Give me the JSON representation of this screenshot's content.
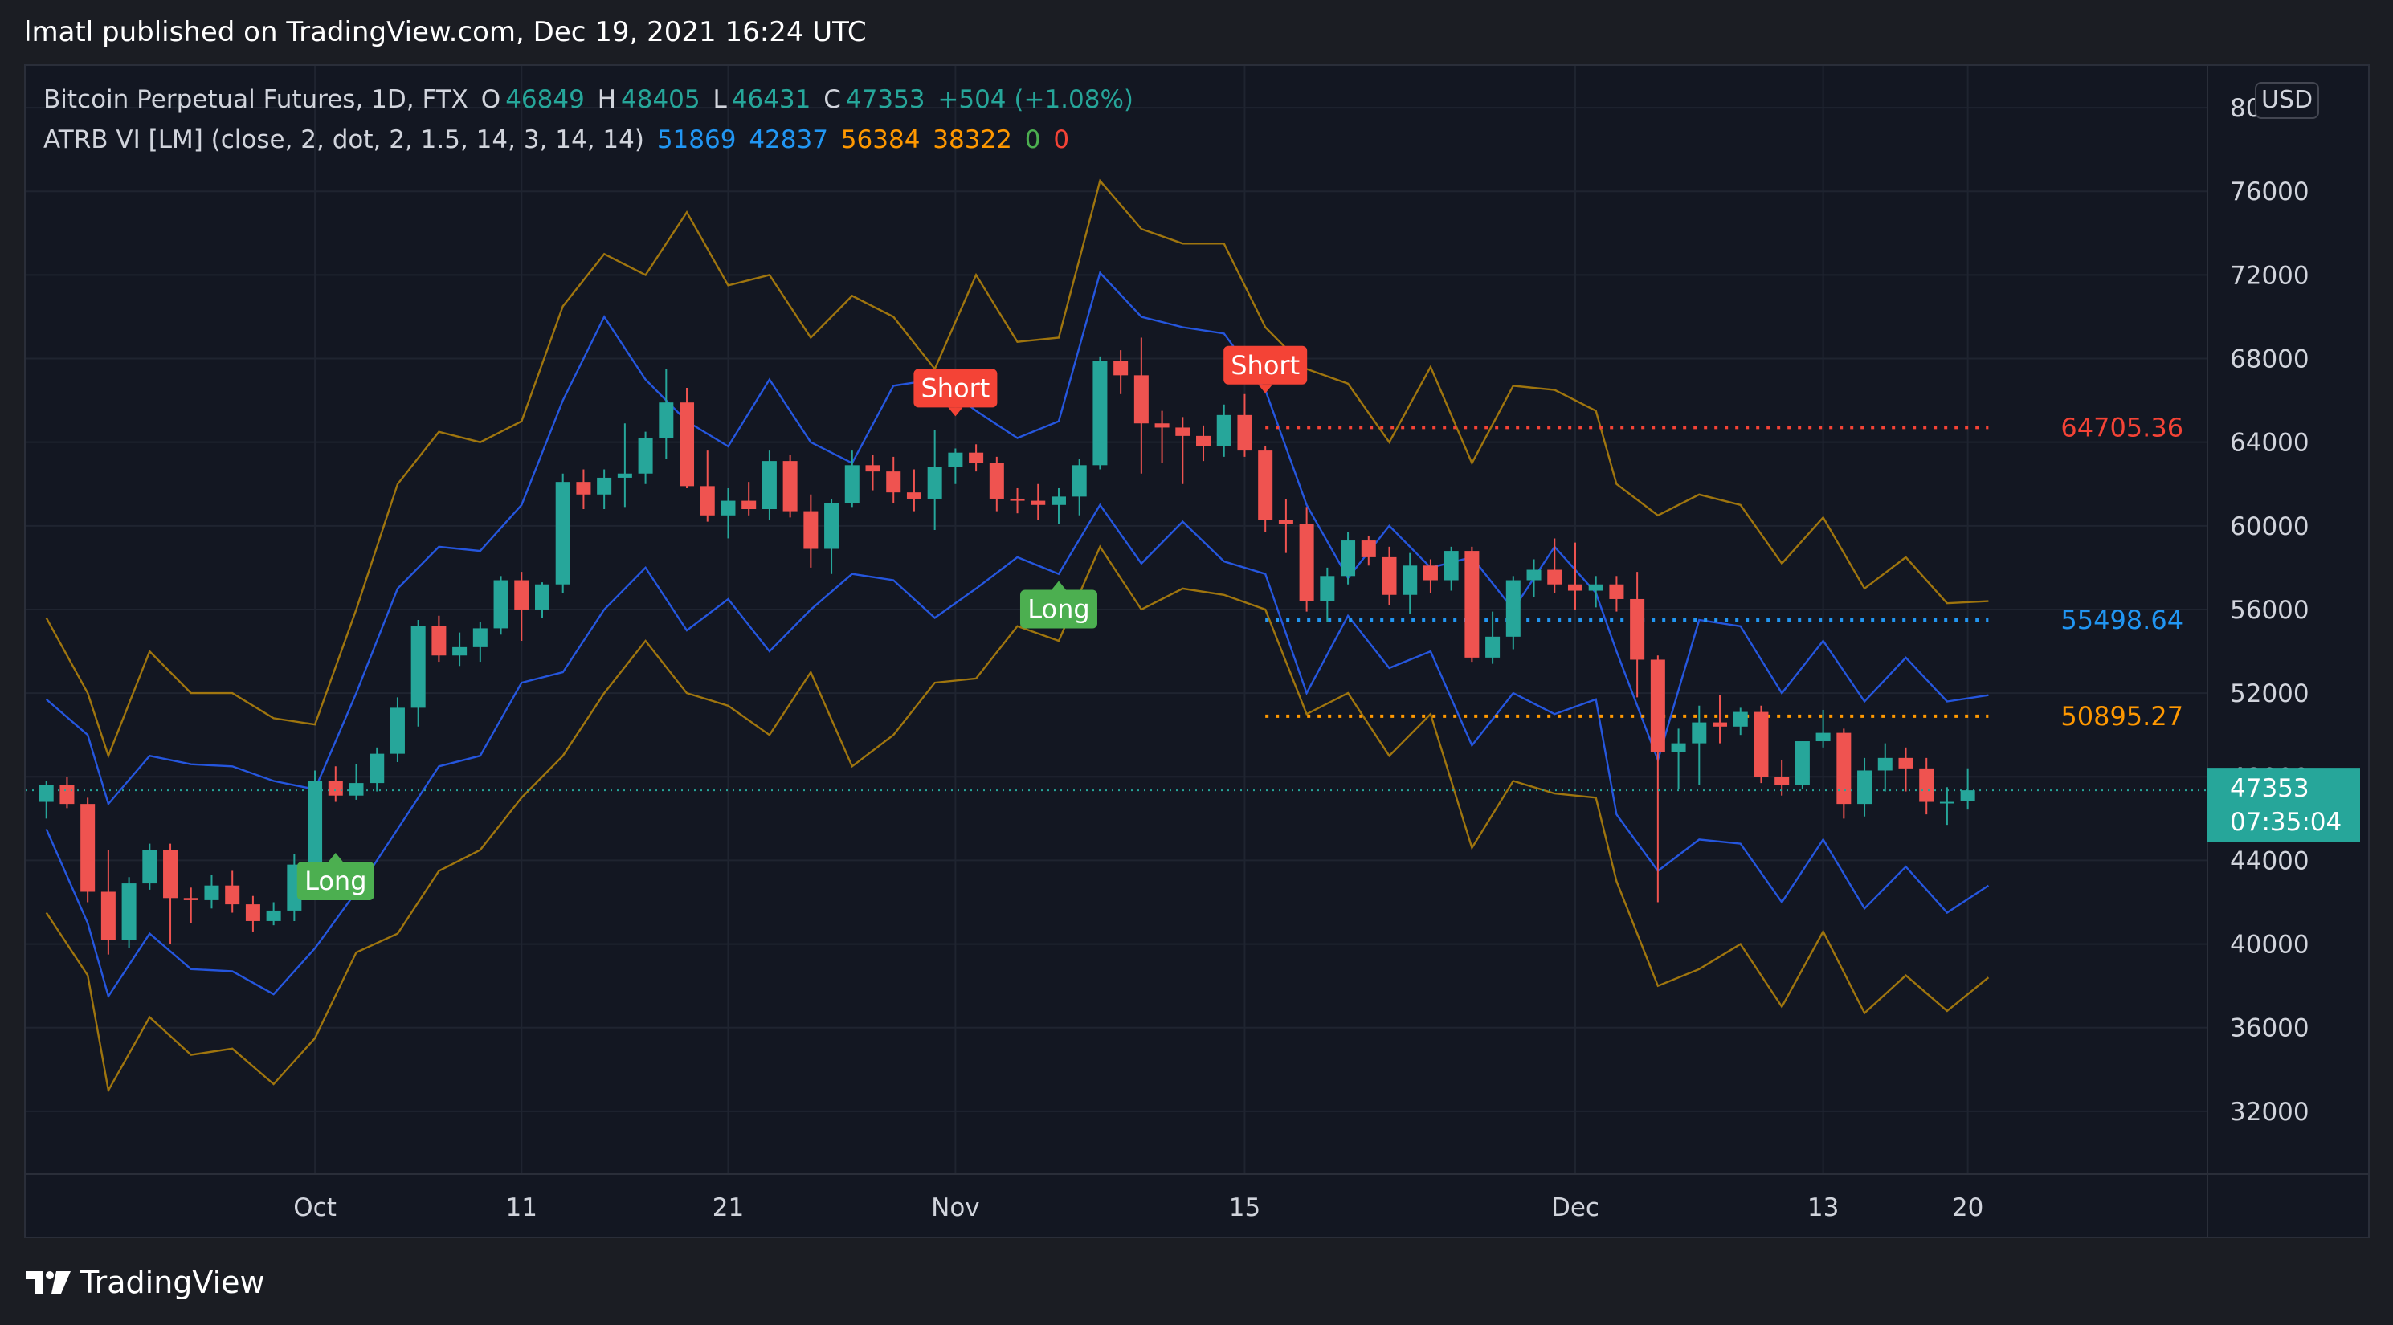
{
  "caption": "lmatl published on TradingView.com, Dec 19, 2021 16:24 UTC",
  "legend": {
    "symbol": "Bitcoin Perpetual Futures, 1D, FTX",
    "o_label": "O",
    "o_value": "46849",
    "h_label": "H",
    "h_value": "48405",
    "l_label": "L",
    "l_value": "46431",
    "c_label": "C",
    "c_value": "47353",
    "change": "+504 (+1.08%)",
    "indicator": "ATRB VI [LM] (close, 2, dot, 2, 1.5, 14, 3, 14, 14)",
    "ind_values": [
      "51869",
      "42837",
      "56384",
      "38322",
      "0",
      "0"
    ]
  },
  "currency": "USD",
  "footer_brand": "TradingView",
  "colors": {
    "up": "#26a69a",
    "down": "#ef5350",
    "inner_band": "#2962ff",
    "outer_band": "#b8860b",
    "short_label": "#f44336",
    "long_label": "#4caf50"
  },
  "chart_data": {
    "type": "candlestick",
    "ylim": [
      29000,
      82000
    ],
    "y_ticks": [
      32000,
      36000,
      40000,
      44000,
      48000,
      52000,
      56000,
      60000,
      64000,
      68000,
      72000,
      76000,
      80000
    ],
    "x_ticks": [
      {
        "label": "Oct",
        "index": 13
      },
      {
        "label": "11",
        "index": 23
      },
      {
        "label": "21",
        "index": 33
      },
      {
        "label": "Nov",
        "index": 44
      },
      {
        "label": "15",
        "index": 58
      },
      {
        "label": "Dec",
        "index": 74
      },
      {
        "label": "13",
        "index": 86
      },
      {
        "label": "20",
        "index": 93
      }
    ],
    "index_range": [
      -1,
      104.6
    ],
    "candles": [
      [
        46800,
        47800,
        46000,
        47600
      ],
      [
        47600,
        48000,
        46500,
        46700
      ],
      [
        46700,
        47000,
        42000,
        42500
      ],
      [
        42500,
        44500,
        39500,
        40200
      ],
      [
        40200,
        43200,
        39800,
        42900
      ],
      [
        42900,
        44800,
        42600,
        44500
      ],
      [
        44500,
        44800,
        40000,
        42200
      ],
      [
        42200,
        42700,
        41000,
        42100
      ],
      [
        42100,
        43300,
        41700,
        42800
      ],
      [
        42800,
        43500,
        41500,
        41900
      ],
      [
        41900,
        42300,
        40600,
        41100
      ],
      [
        41100,
        42000,
        40900,
        41600
      ],
      [
        41600,
        44300,
        41100,
        43800
      ],
      [
        43800,
        48300,
        43200,
        47800
      ],
      [
        47800,
        48500,
        46800,
        47100
      ],
      [
        47100,
        48600,
        46900,
        47700
      ],
      [
        47700,
        49400,
        47300,
        49100
      ],
      [
        49100,
        51800,
        48700,
        51300
      ],
      [
        51300,
        55500,
        50400,
        55200
      ],
      [
        55200,
        55700,
        53500,
        53800
      ],
      [
        53800,
        54900,
        53300,
        54200
      ],
      [
        54200,
        55400,
        53500,
        55100
      ],
      [
        55100,
        57600,
        54800,
        57400
      ],
      [
        57400,
        57800,
        54500,
        56000
      ],
      [
        56000,
        57300,
        55600,
        57200
      ],
      [
        57200,
        62500,
        56800,
        62100
      ],
      [
        62100,
        62700,
        60800,
        61500
      ],
      [
        61500,
        62700,
        60800,
        62300
      ],
      [
        62300,
        64900,
        60900,
        62500
      ],
      [
        62500,
        64500,
        62000,
        64200
      ],
      [
        64200,
        67500,
        63200,
        65900
      ],
      [
        65900,
        66600,
        61800,
        61900
      ],
      [
        61900,
        63600,
        60200,
        60500
      ],
      [
        60500,
        61800,
        59400,
        61200
      ],
      [
        61200,
        62100,
        60500,
        60800
      ],
      [
        60800,
        63600,
        60300,
        63100
      ],
      [
        63100,
        63400,
        60400,
        60700
      ],
      [
        60700,
        61500,
        58000,
        58900
      ],
      [
        58900,
        61300,
        57700,
        61100
      ],
      [
        61100,
        63600,
        60900,
        62900
      ],
      [
        62900,
        63400,
        61700,
        62600
      ],
      [
        62600,
        63300,
        61100,
        61600
      ],
      [
        61600,
        62700,
        60700,
        61300
      ],
      [
        61300,
        64600,
        59800,
        62800
      ],
      [
        62800,
        63700,
        62000,
        63500
      ],
      [
        63500,
        63900,
        62600,
        63000
      ],
      [
        63000,
        63300,
        60700,
        61300
      ],
      [
        61300,
        61800,
        60600,
        61200
      ],
      [
        61200,
        62000,
        60300,
        61000
      ],
      [
        61000,
        61800,
        60100,
        61400
      ],
      [
        61400,
        63200,
        60500,
        62900
      ],
      [
        62900,
        68100,
        62700,
        67900
      ],
      [
        67900,
        68400,
        66300,
        67200
      ],
      [
        67200,
        69000,
        62500,
        64900
      ],
      [
        64900,
        65500,
        63000,
        64700
      ],
      [
        64700,
        65200,
        62000,
        64300
      ],
      [
        64300,
        64800,
        63100,
        63800
      ],
      [
        63800,
        65800,
        63300,
        65300
      ],
      [
        65300,
        66300,
        63300,
        63600
      ],
      [
        63600,
        63800,
        59700,
        60300
      ],
      [
        60300,
        61300,
        58700,
        60100
      ],
      [
        60100,
        60900,
        55900,
        56400
      ],
      [
        56400,
        58000,
        55400,
        57600
      ],
      [
        57600,
        59700,
        57200,
        59300
      ],
      [
        59300,
        59500,
        58100,
        58500
      ],
      [
        58500,
        59000,
        56200,
        56700
      ],
      [
        56700,
        58700,
        55800,
        58100
      ],
      [
        58100,
        58400,
        56800,
        57400
      ],
      [
        57400,
        59000,
        56900,
        58800
      ],
      [
        58800,
        59000,
        53500,
        53700
      ],
      [
        53700,
        55900,
        53400,
        54700
      ],
      [
        54700,
        57600,
        54100,
        57400
      ],
      [
        57400,
        58400,
        56600,
        57900
      ],
      [
        57900,
        59400,
        56800,
        57200
      ],
      [
        57200,
        59200,
        56000,
        56900
      ],
      [
        56900,
        57600,
        56100,
        57200
      ],
      [
        57200,
        57600,
        55900,
        56500
      ],
      [
        56500,
        57800,
        51800,
        53600
      ],
      [
        53600,
        53800,
        42000,
        49200
      ],
      [
        49200,
        50300,
        47400,
        49600
      ],
      [
        49600,
        51400,
        47600,
        50600
      ],
      [
        50600,
        51900,
        49600,
        50400
      ],
      [
        50400,
        51300,
        50000,
        51100
      ],
      [
        51100,
        51400,
        47700,
        48000
      ],
      [
        48000,
        48800,
        47100,
        47600
      ],
      [
        47600,
        49700,
        47400,
        49700
      ],
      [
        49700,
        51200,
        49400,
        50100
      ],
      [
        50100,
        50300,
        46000,
        46700
      ],
      [
        46700,
        48900,
        46100,
        48300
      ],
      [
        48300,
        49600,
        47300,
        48900
      ],
      [
        48900,
        49400,
        47300,
        48400
      ],
      [
        48400,
        48900,
        46200,
        46800
      ],
      [
        46800,
        47500,
        45700,
        46800
      ],
      [
        46849,
        48405,
        46431,
        47353
      ]
    ],
    "inner_upper": [
      [
        0,
        51700
      ],
      [
        2,
        50000
      ],
      [
        3,
        46700
      ],
      [
        5,
        49000
      ],
      [
        7,
        48600
      ],
      [
        9,
        48500
      ],
      [
        11,
        47800
      ],
      [
        13,
        47400
      ],
      [
        15,
        52000
      ],
      [
        17,
        57000
      ],
      [
        19,
        59000
      ],
      [
        21,
        58800
      ],
      [
        23,
        61000
      ],
      [
        25,
        66000
      ],
      [
        27,
        70000
      ],
      [
        29,
        67000
      ],
      [
        31,
        65000
      ],
      [
        33,
        63800
      ],
      [
        35,
        67000
      ],
      [
        37,
        64000
      ],
      [
        39,
        63000
      ],
      [
        41,
        66700
      ],
      [
        43,
        67000
      ],
      [
        45,
        65500
      ],
      [
        47,
        64200
      ],
      [
        49,
        65000
      ],
      [
        51,
        72100
      ],
      [
        53,
        70000
      ],
      [
        55,
        69500
      ],
      [
        57,
        69200
      ],
      [
        59,
        66500
      ],
      [
        61,
        61000
      ],
      [
        63,
        57500
      ],
      [
        65,
        60000
      ],
      [
        67,
        58000
      ],
      [
        69,
        58500
      ],
      [
        71,
        56000
      ],
      [
        73,
        59000
      ],
      [
        75,
        56800
      ],
      [
        76,
        54000
      ],
      [
        78,
        48800
      ],
      [
        80,
        55500
      ],
      [
        82,
        55200
      ],
      [
        84,
        52000
      ],
      [
        86,
        54500
      ],
      [
        88,
        51600
      ],
      [
        90,
        53700
      ],
      [
        92,
        51600
      ],
      [
        94,
        51900
      ]
    ],
    "inner_lower": [
      [
        0,
        45500
      ],
      [
        2,
        41000
      ],
      [
        3,
        37500
      ],
      [
        5,
        40500
      ],
      [
        7,
        38800
      ],
      [
        9,
        38700
      ],
      [
        11,
        37600
      ],
      [
        13,
        39800
      ],
      [
        15,
        42500
      ],
      [
        17,
        45500
      ],
      [
        19,
        48500
      ],
      [
        21,
        49000
      ],
      [
        23,
        52500
      ],
      [
        25,
        53000
      ],
      [
        27,
        56000
      ],
      [
        29,
        58000
      ],
      [
        31,
        55000
      ],
      [
        33,
        56500
      ],
      [
        35,
        54000
      ],
      [
        37,
        56000
      ],
      [
        39,
        57700
      ],
      [
        41,
        57400
      ],
      [
        43,
        55600
      ],
      [
        45,
        57000
      ],
      [
        47,
        58500
      ],
      [
        49,
        57700
      ],
      [
        51,
        61000
      ],
      [
        53,
        58200
      ],
      [
        55,
        60200
      ],
      [
        57,
        58300
      ],
      [
        59,
        57700
      ],
      [
        61,
        52000
      ],
      [
        63,
        55700
      ],
      [
        65,
        53200
      ],
      [
        67,
        54000
      ],
      [
        69,
        49500
      ],
      [
        71,
        52000
      ],
      [
        73,
        51000
      ],
      [
        75,
        51700
      ],
      [
        76,
        46200
      ],
      [
        78,
        43500
      ],
      [
        80,
        45000
      ],
      [
        82,
        44800
      ],
      [
        84,
        42000
      ],
      [
        86,
        45000
      ],
      [
        88,
        41700
      ],
      [
        90,
        43700
      ],
      [
        92,
        41500
      ],
      [
        94,
        42800
      ]
    ],
    "outer_upper": [
      [
        0,
        55600
      ],
      [
        2,
        52000
      ],
      [
        3,
        49000
      ],
      [
        5,
        54000
      ],
      [
        7,
        52000
      ],
      [
        9,
        52000
      ],
      [
        11,
        50800
      ],
      [
        13,
        50500
      ],
      [
        15,
        56000
      ],
      [
        17,
        62000
      ],
      [
        19,
        64500
      ],
      [
        21,
        64000
      ],
      [
        23,
        65000
      ],
      [
        25,
        70500
      ],
      [
        27,
        73000
      ],
      [
        29,
        72000
      ],
      [
        31,
        75000
      ],
      [
        33,
        71500
      ],
      [
        35,
        72000
      ],
      [
        37,
        69000
      ],
      [
        39,
        71000
      ],
      [
        41,
        70000
      ],
      [
        43,
        67500
      ],
      [
        45,
        72000
      ],
      [
        47,
        68800
      ],
      [
        49,
        69000
      ],
      [
        51,
        76500
      ],
      [
        53,
        74200
      ],
      [
        55,
        73500
      ],
      [
        57,
        73500
      ],
      [
        59,
        69500
      ],
      [
        61,
        67500
      ],
      [
        63,
        66800
      ],
      [
        65,
        64000
      ],
      [
        67,
        67600
      ],
      [
        69,
        63000
      ],
      [
        71,
        66700
      ],
      [
        73,
        66500
      ],
      [
        75,
        65500
      ],
      [
        76,
        62000
      ],
      [
        78,
        60500
      ],
      [
        80,
        61500
      ],
      [
        82,
        61000
      ],
      [
        84,
        58200
      ],
      [
        86,
        60400
      ],
      [
        88,
        57000
      ],
      [
        90,
        58500
      ],
      [
        92,
        56300
      ],
      [
        94,
        56400
      ]
    ],
    "outer_lower": [
      [
        0,
        41500
      ],
      [
        2,
        38500
      ],
      [
        3,
        33000
      ],
      [
        5,
        36500
      ],
      [
        7,
        34700
      ],
      [
        9,
        35000
      ],
      [
        11,
        33300
      ],
      [
        13,
        35500
      ],
      [
        15,
        39600
      ],
      [
        17,
        40500
      ],
      [
        19,
        43500
      ],
      [
        21,
        44500
      ],
      [
        23,
        47000
      ],
      [
        25,
        49000
      ],
      [
        27,
        52000
      ],
      [
        29,
        54500
      ],
      [
        31,
        52000
      ],
      [
        33,
        51400
      ],
      [
        35,
        50000
      ],
      [
        37,
        53000
      ],
      [
        39,
        48500
      ],
      [
        41,
        50000
      ],
      [
        43,
        52500
      ],
      [
        45,
        52700
      ],
      [
        47,
        55200
      ],
      [
        49,
        54500
      ],
      [
        51,
        59000
      ],
      [
        53,
        56000
      ],
      [
        55,
        57000
      ],
      [
        57,
        56700
      ],
      [
        59,
        56000
      ],
      [
        61,
        51000
      ],
      [
        63,
        52000
      ],
      [
        65,
        49000
      ],
      [
        67,
        51000
      ],
      [
        69,
        44600
      ],
      [
        71,
        47800
      ],
      [
        73,
        47200
      ],
      [
        75,
        47000
      ],
      [
        76,
        43000
      ],
      [
        78,
        38000
      ],
      [
        80,
        38800
      ],
      [
        82,
        40000
      ],
      [
        84,
        37000
      ],
      [
        86,
        40600
      ],
      [
        88,
        36700
      ],
      [
        90,
        38500
      ],
      [
        92,
        36800
      ],
      [
        94,
        38400
      ]
    ],
    "levels": [
      {
        "value": 64705.36,
        "label": "64705.36",
        "color": "#f44336",
        "from_index": 59,
        "to_index": 94
      },
      {
        "value": 55498.64,
        "label": "55498.64",
        "color": "#2196f3",
        "from_index": 59,
        "to_index": 94
      },
      {
        "value": 50895.27,
        "label": "50895.27",
        "color": "#ff9800",
        "from_index": 59,
        "to_index": 94
      }
    ],
    "signals": [
      {
        "type": "Long",
        "index": 14,
        "value": 44400,
        "position": "below"
      },
      {
        "type": "Short",
        "index": 44,
        "value": 65200,
        "position": "above"
      },
      {
        "type": "Long",
        "index": 49,
        "value": 57400,
        "position": "below"
      },
      {
        "type": "Short",
        "index": 59,
        "value": 66300,
        "position": "above"
      }
    ],
    "last_price": {
      "value": 47353,
      "label": "47353",
      "countdown": "07:35:04"
    }
  }
}
